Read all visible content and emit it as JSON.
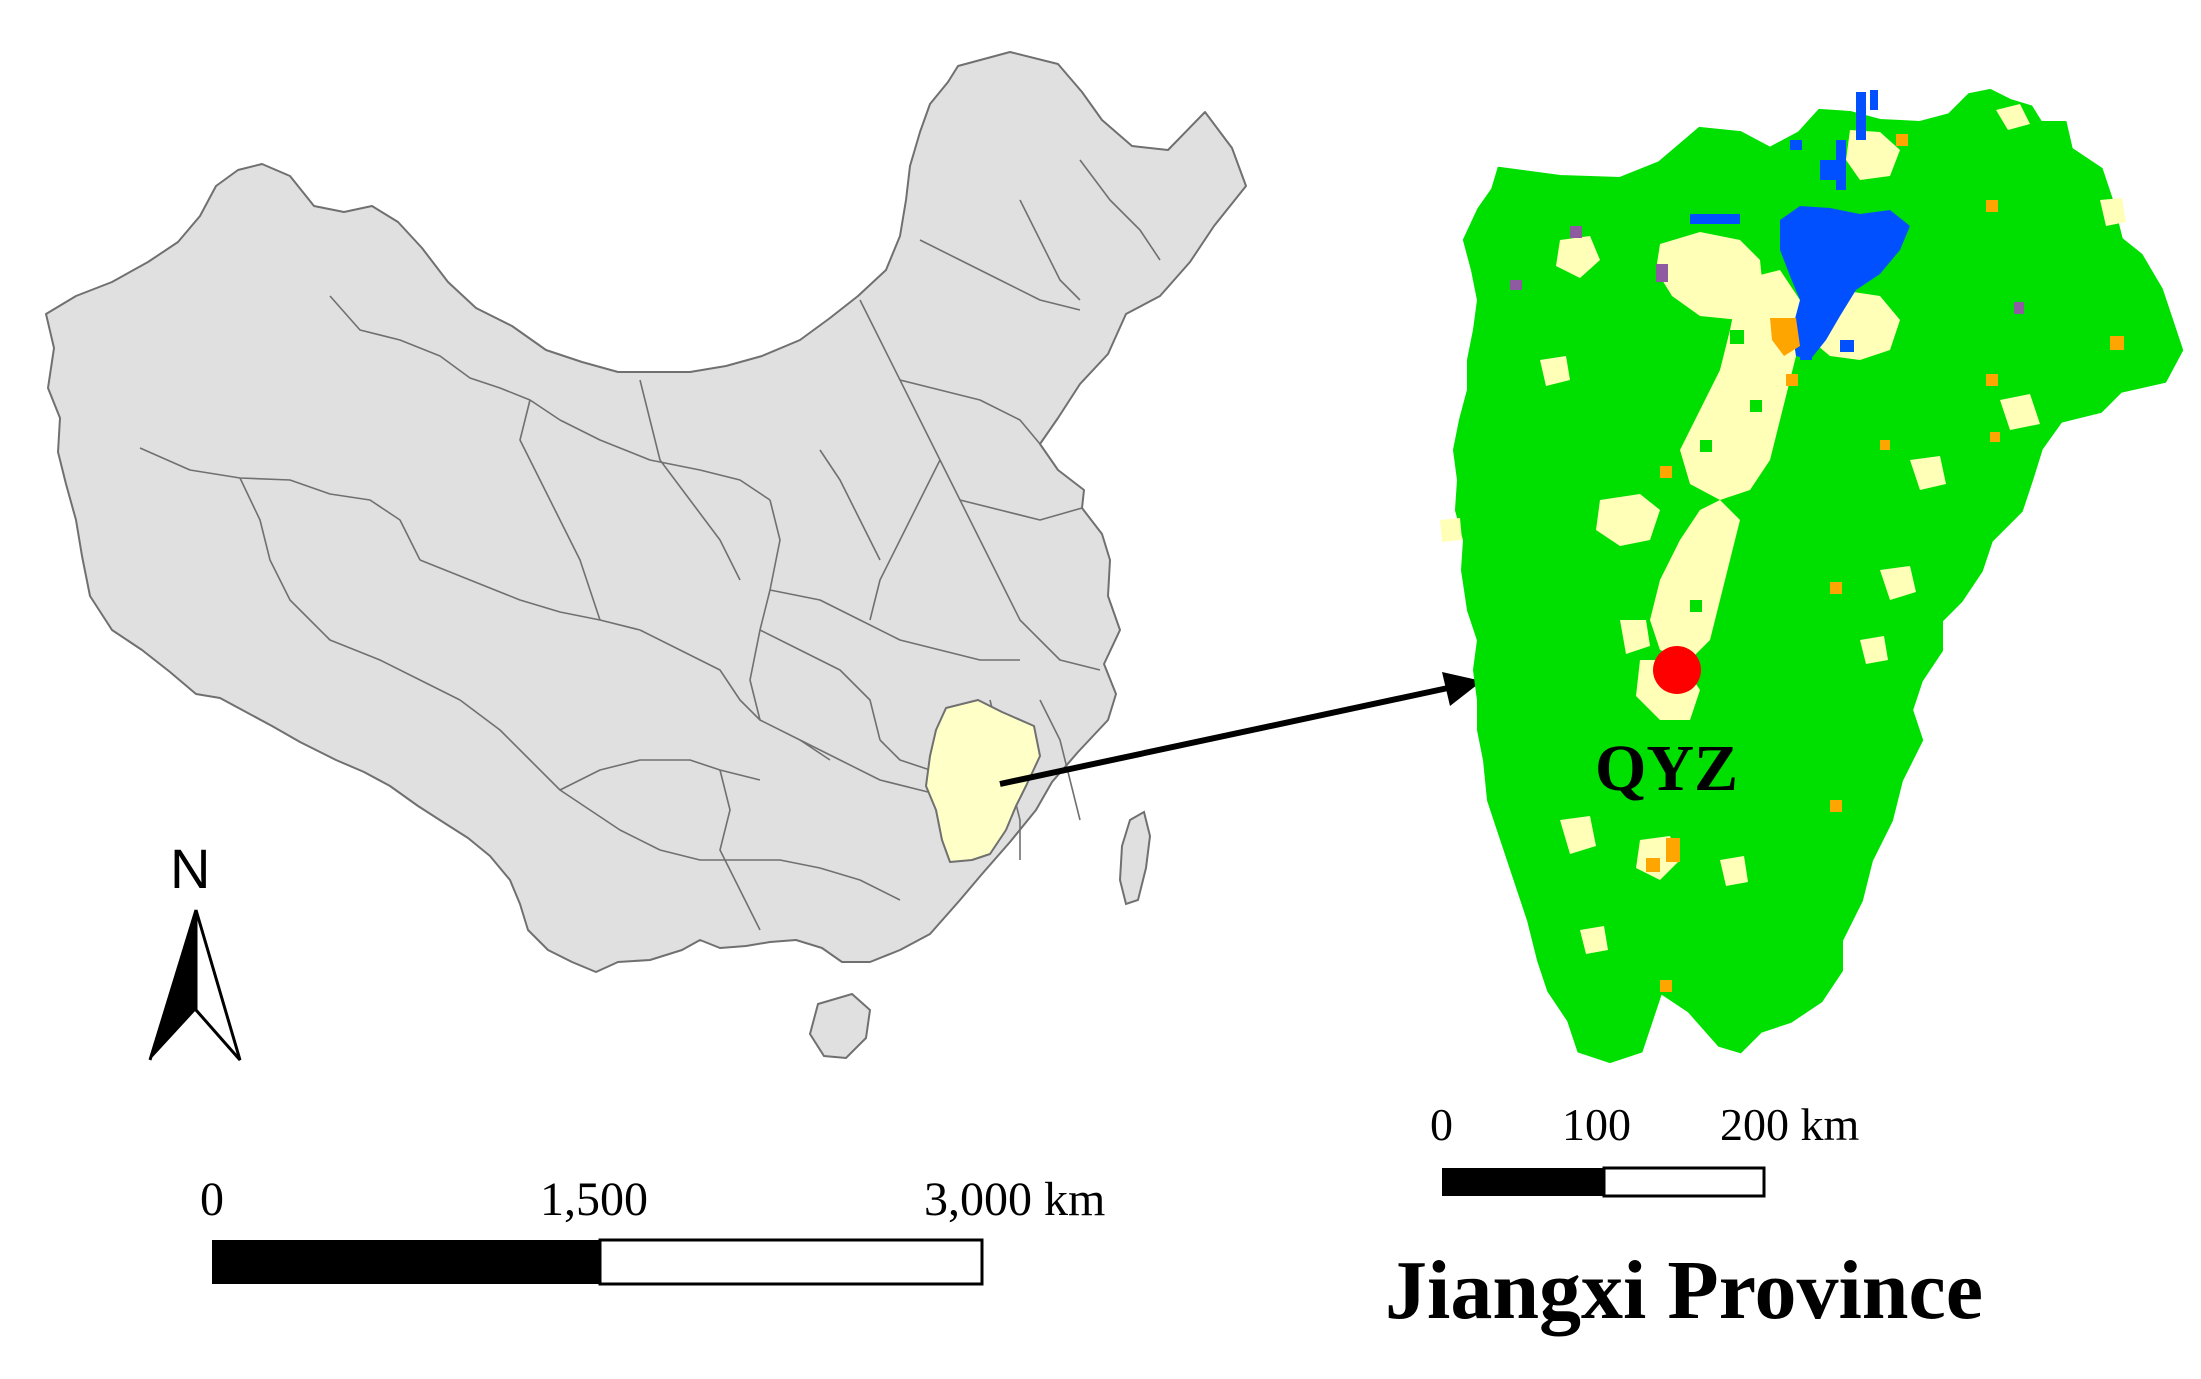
{
  "north_arrow": {
    "label": "N"
  },
  "china_scale_bar": {
    "labels": [
      "0",
      "1,500",
      "3,000 km"
    ]
  },
  "jiangxi_scale_bar": {
    "labels": [
      "0",
      "100",
      "200 km"
    ]
  },
  "site": {
    "label": "QYZ",
    "color": "#ff0000"
  },
  "title": "Jiangxi Province",
  "colors": {
    "china_fill": "#e0e0e0",
    "china_border": "#707070",
    "jiangxi_highlight": "#ffffc8",
    "forest": "#00e000",
    "cropland": "#ffffb8",
    "water": "#0050ff",
    "orange_class": "#ffa500",
    "purple_class": "#8e5aa0"
  }
}
